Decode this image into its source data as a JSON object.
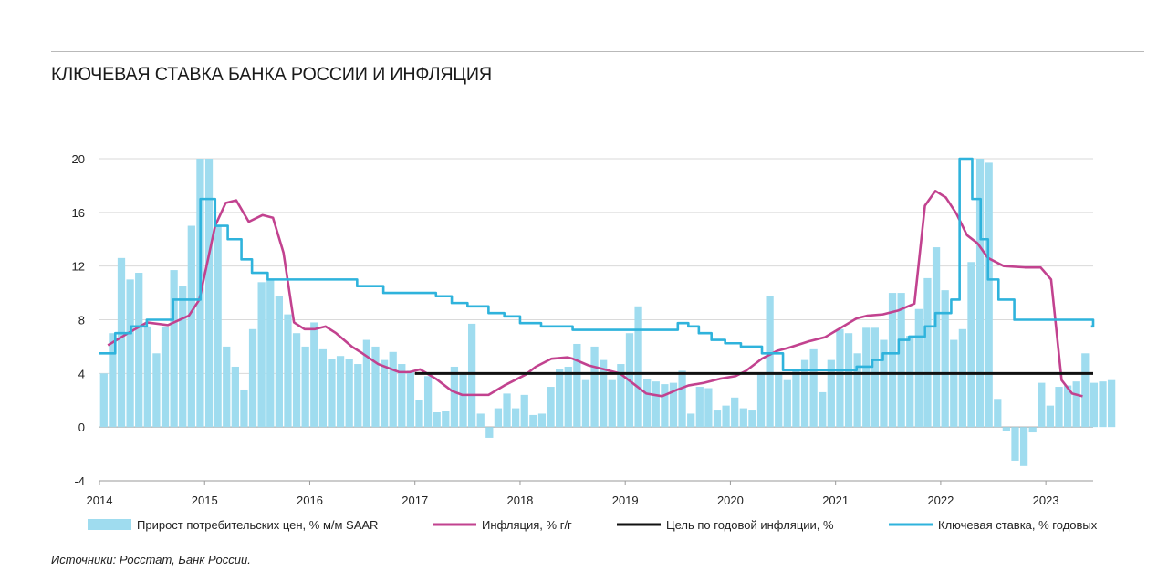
{
  "title": "КЛЮЧЕВАЯ СТАВКА БАНКА РОССИИ И ИНФЛЯЦИЯ",
  "source": "Источники: Росстат, Банк России.",
  "colors": {
    "bars": "#9fdcef",
    "inflation": "#c2428f",
    "target": "#111111",
    "key_rate": "#2fb3dc",
    "grid": "#dadada"
  },
  "chart_data": {
    "type": "bar",
    "title": "КЛЮЧЕВАЯ СТАВКА БАНКА РОССИИ И ИНФЛЯЦИЯ",
    "xlabel": "",
    "ylabel": "",
    "ylim": [
      -4,
      20
    ],
    "yticks": [
      "-4",
      "0",
      "4",
      "8",
      "12",
      "16",
      "20"
    ],
    "xlim": [
      2014,
      2023.45
    ],
    "xticks": [
      "2014",
      "2015",
      "2016",
      "2017",
      "2018",
      "2019",
      "2020",
      "2021",
      "2022",
      "2023"
    ],
    "grid": true,
    "legend": [
      {
        "key": "bars",
        "label": "Прирост потребительских цен, % м/м SAAR"
      },
      {
        "key": "inflation",
        "label": "Инфляция, % г/г"
      },
      {
        "key": "target",
        "label": "Цель по годовой инфляции, %"
      },
      {
        "key": "key_rate",
        "label": "Ключевая ставка, % годовых"
      }
    ],
    "bar_series": {
      "name": "Прирост потребительских цен, % м/м SAAR",
      "start": 2014.0,
      "step": 0.08333,
      "values": [
        4.0,
        7.0,
        12.6,
        11.0,
        11.5,
        7.5,
        5.5,
        7.5,
        11.7,
        10.5,
        15.0,
        20.0,
        20.0,
        15.0,
        6.0,
        4.5,
        2.8,
        7.3,
        10.8,
        11.0,
        9.8,
        8.4,
        7.0,
        6.0,
        7.8,
        5.8,
        5.1,
        5.3,
        5.1,
        4.7,
        6.5,
        6.0,
        5.0,
        5.6,
        4.7,
        4.2,
        2.0,
        3.8,
        1.1,
        1.2,
        4.5,
        4.0,
        7.7,
        1.0,
        -0.8,
        1.4,
        2.5,
        1.4,
        2.4,
        0.9,
        1.0,
        3.0,
        4.3,
        4.5,
        6.2,
        3.5,
        6.0,
        5.0,
        3.5,
        4.7,
        7.0,
        9.0,
        3.6,
        3.4,
        3.2,
        3.3,
        4.2,
        1.0,
        3.0,
        2.9,
        1.3,
        1.6,
        2.2,
        1.4,
        1.3,
        4.0,
        9.8,
        4.0,
        3.5,
        4.2,
        5.0,
        5.8,
        2.6,
        5.0,
        7.3,
        7.0,
        5.5,
        7.4,
        7.4,
        6.5,
        10.0,
        10.0,
        6.8,
        8.8,
        11.1,
        13.4,
        10.2,
        6.5,
        7.3,
        12.3,
        20.0,
        19.7,
        2.1,
        -0.3,
        -2.5,
        -2.9,
        -0.4,
        3.3,
        1.6,
        3.0,
        3.1,
        3.4,
        5.5,
        3.3,
        3.4,
        3.5
      ]
    },
    "series": [
      {
        "name": "Инфляция, % г/г",
        "x": [
          2014.08,
          2014.25,
          2014.45,
          2014.65,
          2014.85,
          2014.95,
          2015.1,
          2015.2,
          2015.3,
          2015.42,
          2015.55,
          2015.65,
          2015.75,
          2015.85,
          2015.95,
          2016.05,
          2016.15,
          2016.25,
          2016.4,
          2016.5,
          2016.65,
          2016.85,
          2016.95,
          2017.05,
          2017.2,
          2017.35,
          2017.45,
          2017.55,
          2017.7,
          2017.85,
          2017.95,
          2018.05,
          2018.15,
          2018.3,
          2018.45,
          2018.5,
          2018.65,
          2018.8,
          2018.95,
          2019.1,
          2019.2,
          2019.35,
          2019.5,
          2019.6,
          2019.75,
          2019.9,
          2020.05,
          2020.15,
          2020.3,
          2020.45,
          2020.55,
          2020.75,
          2020.9,
          2021.05,
          2021.2,
          2021.3,
          2021.45,
          2021.6,
          2021.75,
          2021.85,
          2021.95,
          2022.05,
          2022.15,
          2022.2,
          2022.25,
          2022.35,
          2022.45,
          2022.6,
          2022.8,
          2022.95,
          2023.05,
          2023.15,
          2023.25,
          2023.35
        ],
        "values": [
          6.1,
          6.9,
          7.8,
          7.6,
          8.3,
          9.5,
          15.0,
          16.7,
          16.9,
          15.3,
          15.8,
          15.6,
          13.0,
          7.8,
          7.3,
          7.3,
          7.5,
          7.0,
          6.0,
          5.5,
          4.7,
          4.1,
          4.1,
          4.3,
          3.6,
          2.7,
          2.4,
          2.4,
          2.4,
          3.1,
          3.5,
          3.9,
          4.5,
          5.1,
          5.2,
          5.1,
          4.6,
          4.3,
          4.0,
          3.1,
          2.5,
          2.3,
          2.8,
          3.1,
          3.3,
          3.6,
          3.8,
          4.2,
          5.1,
          5.7,
          5.9,
          6.4,
          6.7,
          7.4,
          8.1,
          8.3,
          8.4,
          8.7,
          9.2,
          16.5,
          17.6,
          17.1,
          15.9,
          15.1,
          14.3,
          13.7,
          12.6,
          12.0,
          11.9,
          11.9,
          11.0,
          3.5,
          2.5,
          2.3
        ]
      },
      {
        "name": "Цель по годовой инфляции, %",
        "x": [
          2017.0,
          2023.45
        ],
        "values": [
          4,
          4
        ]
      },
      {
        "name": "Ключевая ставка, % годовых",
        "x": [
          2014.0,
          2014.15,
          2014.3,
          2014.45,
          2014.58,
          2014.7,
          2014.82,
          2014.96,
          2015.1,
          2015.22,
          2015.35,
          2015.45,
          2015.6,
          2015.8,
          2016.45,
          2016.7,
          2017.2,
          2017.35,
          2017.5,
          2017.7,
          2017.85,
          2018.0,
          2018.2,
          2018.5,
          2019.5,
          2019.6,
          2019.7,
          2019.82,
          2019.95,
          2020.1,
          2020.3,
          2020.5,
          2021.2,
          2021.35,
          2021.45,
          2021.6,
          2021.7,
          2021.85,
          2021.95,
          2022.1,
          2022.18,
          2022.3,
          2022.38,
          2022.45,
          2022.55,
          2022.7,
          2023.45
        ],
        "values": [
          5.5,
          7.0,
          7.5,
          8.0,
          8.0,
          9.5,
          9.5,
          17.0,
          15.0,
          14.0,
          12.5,
          11.5,
          11.0,
          11.0,
          10.5,
          10.0,
          9.75,
          9.25,
          9.0,
          8.5,
          8.25,
          7.75,
          7.5,
          7.25,
          7.75,
          7.5,
          7.0,
          6.5,
          6.25,
          6.0,
          5.5,
          4.25,
          4.5,
          5.0,
          5.5,
          6.5,
          6.75,
          7.5,
          8.5,
          9.5,
          20.0,
          17.0,
          14.0,
          11.0,
          9.5,
          8.0,
          7.5
        ]
      }
    ]
  }
}
